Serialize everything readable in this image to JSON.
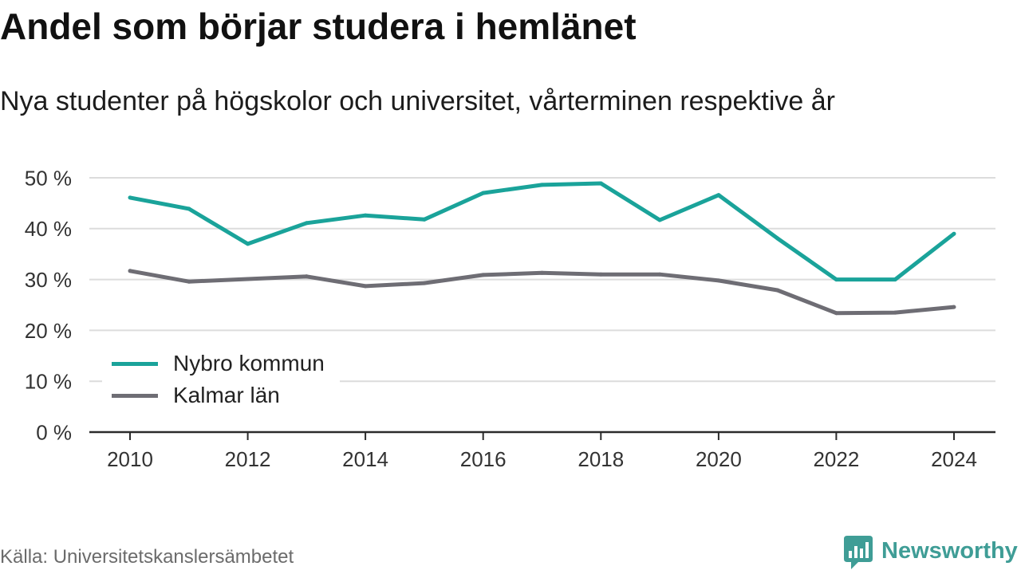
{
  "chart_data": {
    "type": "line",
    "title": "Andel som börjar studera i hemlänet",
    "subtitle": "Nya studenter på högskolor och universitet, vårterminen respektive år",
    "x": [
      2010,
      2011,
      2012,
      2013,
      2014,
      2015,
      2016,
      2017,
      2018,
      2019,
      2020,
      2021,
      2022,
      2023,
      2024
    ],
    "xticks": [
      2010,
      2012,
      2014,
      2016,
      2018,
      2020,
      2022,
      2024
    ],
    "xtick_labels": [
      "2010",
      "2012",
      "2014",
      "2016",
      "2018",
      "2020",
      "2022",
      "2024"
    ],
    "ylim": [
      0,
      50
    ],
    "yticks": [
      0,
      10,
      20,
      30,
      40,
      50
    ],
    "ytick_labels": [
      "0 %",
      "10 %",
      "20 %",
      "30 %",
      "40 %",
      "50 %"
    ],
    "grid": {
      "y": true,
      "x": false
    },
    "legend_position": "bottom-left",
    "series": [
      {
        "name": "Nybro kommun",
        "color": "#1aa39a",
        "values": [
          46.1,
          43.9,
          37.0,
          41.1,
          42.6,
          41.8,
          47.0,
          48.6,
          48.9,
          41.7,
          46.6,
          38.1,
          30.0,
          30.0,
          39.0
        ]
      },
      {
        "name": "Kalmar län",
        "color": "#6e6d74",
        "values": [
          31.7,
          29.6,
          30.1,
          30.6,
          28.7,
          29.3,
          30.9,
          31.3,
          31.0,
          31.0,
          29.8,
          27.9,
          23.4,
          23.5,
          24.6
        ]
      }
    ]
  },
  "source": "Källa: Universitetskanslersämbetet",
  "logo": {
    "text": "Newsworthy",
    "icon": "newsworthy-chart-bubble-icon",
    "color": "#3f9d96"
  },
  "colors": {
    "grid": "#dcdcdc",
    "axis": "#2b2b2b",
    "axis_text": "#333333"
  }
}
